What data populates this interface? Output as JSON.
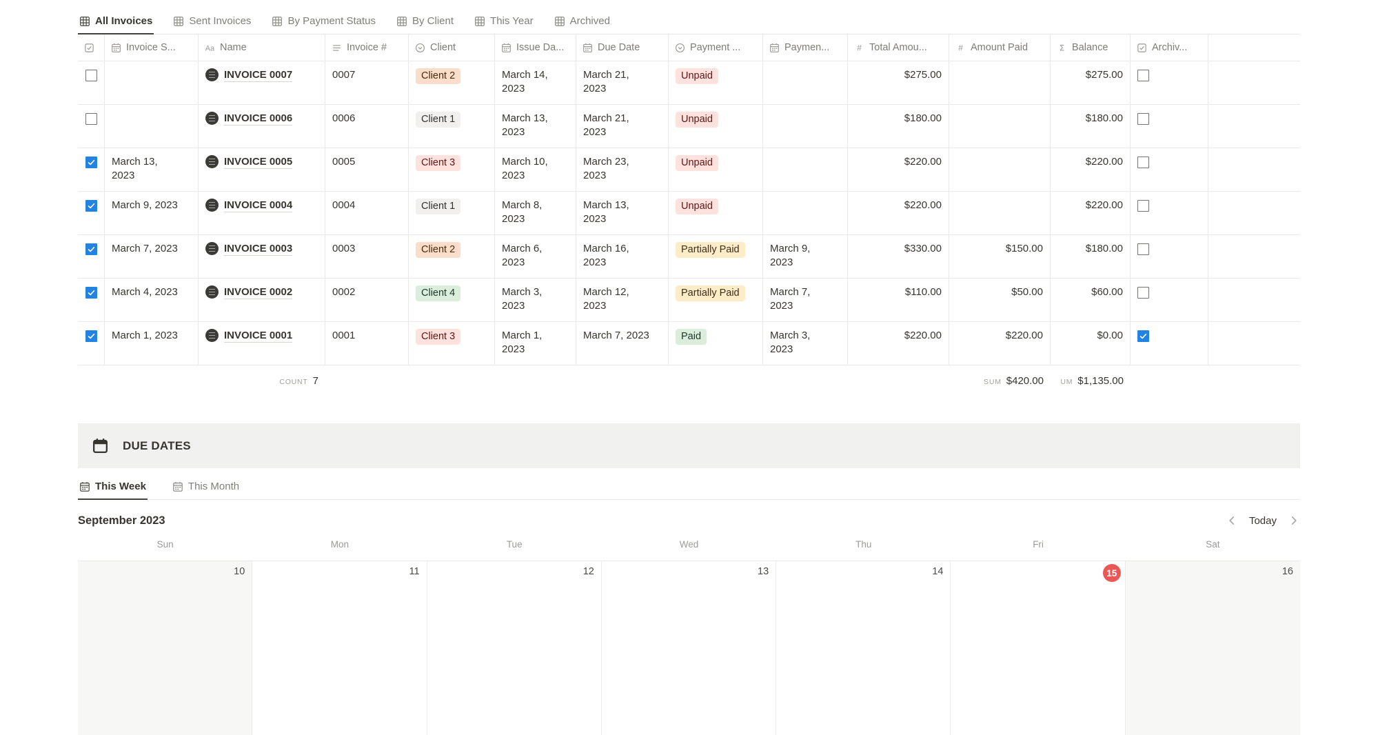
{
  "view_tabs": [
    {
      "label": "All Invoices",
      "icon": "table-icon",
      "active": true
    },
    {
      "label": "Sent Invoices",
      "icon": "table-icon",
      "active": false
    },
    {
      "label": "By Payment Status",
      "icon": "table-icon",
      "active": false
    },
    {
      "label": "By Client",
      "icon": "table-icon",
      "active": false
    },
    {
      "label": "This Year",
      "icon": "table-icon",
      "active": false
    },
    {
      "label": "Archived",
      "icon": "table-icon",
      "active": false
    }
  ],
  "table": {
    "columns": [
      {
        "key": "select",
        "label": "",
        "icon": "checkbox-icon",
        "type": "checkbox"
      },
      {
        "key": "invoice_sent",
        "label": "Invoice S...",
        "icon": "calendar-icon",
        "type": "text"
      },
      {
        "key": "name",
        "label": "Name",
        "icon": "aa-icon",
        "type": "name"
      },
      {
        "key": "invoice_num",
        "label": "Invoice #",
        "icon": "text-icon",
        "type": "text"
      },
      {
        "key": "client",
        "label": "Client",
        "icon": "select-icon",
        "type": "badge"
      },
      {
        "key": "issue_date",
        "label": "Issue Da...",
        "icon": "calendar-icon",
        "type": "text"
      },
      {
        "key": "due_date",
        "label": "Due Date",
        "icon": "calendar-icon",
        "type": "text"
      },
      {
        "key": "status",
        "label": "Payment ...",
        "icon": "select-icon",
        "type": "badge"
      },
      {
        "key": "payment_date",
        "label": "Paymen...",
        "icon": "calendar-icon",
        "type": "text"
      },
      {
        "key": "total",
        "label": "Total Amou...",
        "icon": "hash-icon",
        "type": "number"
      },
      {
        "key": "amount_paid",
        "label": "Amount Paid",
        "icon": "hash-icon",
        "type": "number"
      },
      {
        "key": "balance",
        "label": "Balance",
        "icon": "sigma-icon",
        "type": "number"
      },
      {
        "key": "archived",
        "label": "Archiv...",
        "icon": "checkbox-icon",
        "type": "archived"
      },
      {
        "key": "spacer",
        "label": "",
        "icon": null,
        "type": "empty"
      }
    ],
    "rows": [
      {
        "select": false,
        "invoice_sent": "",
        "name": "INVOICE 0007",
        "invoice_num": "0007",
        "client": {
          "label": "Client 2",
          "color": "orange"
        },
        "issue_date": "March 14,\n2023",
        "due_date": "March 21,\n2023",
        "status": {
          "label": "Unpaid",
          "color": "red"
        },
        "payment_date": "",
        "total": "$275.00",
        "amount_paid": "",
        "balance": "$275.00",
        "archived": false
      },
      {
        "select": false,
        "invoice_sent": "",
        "name": "INVOICE 0006",
        "invoice_num": "0006",
        "client": {
          "label": "Client 1",
          "color": "gray"
        },
        "issue_date": "March 13,\n2023",
        "due_date": "March 21,\n2023",
        "status": {
          "label": "Unpaid",
          "color": "red"
        },
        "payment_date": "",
        "total": "$180.00",
        "amount_paid": "",
        "balance": "$180.00",
        "archived": false
      },
      {
        "select": true,
        "invoice_sent": "March 13,\n2023",
        "name": "INVOICE 0005",
        "invoice_num": "0005",
        "client": {
          "label": "Client 3",
          "color": "red"
        },
        "issue_date": "March 10,\n2023",
        "due_date": "March 23,\n2023",
        "status": {
          "label": "Unpaid",
          "color": "red"
        },
        "payment_date": "",
        "total": "$220.00",
        "amount_paid": "",
        "balance": "$220.00",
        "archived": false
      },
      {
        "select": true,
        "invoice_sent": "March 9, 2023",
        "name": "INVOICE 0004",
        "invoice_num": "0004",
        "client": {
          "label": "Client 1",
          "color": "gray"
        },
        "issue_date": "March 8,\n2023",
        "due_date": "March 13,\n2023",
        "status": {
          "label": "Unpaid",
          "color": "red"
        },
        "payment_date": "",
        "total": "$220.00",
        "amount_paid": "",
        "balance": "$220.00",
        "archived": false
      },
      {
        "select": true,
        "invoice_sent": "March 7, 2023",
        "name": "INVOICE 0003",
        "invoice_num": "0003",
        "client": {
          "label": "Client 2",
          "color": "orange"
        },
        "issue_date": "March 6,\n2023",
        "due_date": "March 16,\n2023",
        "status": {
          "label": "Partially Paid",
          "color": "yellow"
        },
        "payment_date": "March 9,\n2023",
        "total": "$330.00",
        "amount_paid": "$150.00",
        "balance": "$180.00",
        "archived": false
      },
      {
        "select": true,
        "invoice_sent": "March 4, 2023",
        "name": "INVOICE 0002",
        "invoice_num": "0002",
        "client": {
          "label": "Client 4",
          "color": "green"
        },
        "issue_date": "March 3,\n2023",
        "due_date": "March 12,\n2023",
        "status": {
          "label": "Partially Paid",
          "color": "yellow"
        },
        "payment_date": "March 7,\n2023",
        "total": "$110.00",
        "amount_paid": "$50.00",
        "balance": "$60.00",
        "archived": false
      },
      {
        "select": true,
        "invoice_sent": "March 1, 2023",
        "name": "INVOICE 0001",
        "invoice_num": "0001",
        "client": {
          "label": "Client 3",
          "color": "red"
        },
        "issue_date": "March 1,\n2023",
        "due_date": "March 7, 2023",
        "status": {
          "label": "Paid",
          "color": "green"
        },
        "payment_date": "March 3,\n2023",
        "total": "$220.00",
        "amount_paid": "$220.00",
        "balance": "$0.00",
        "archived": true
      }
    ],
    "footer": {
      "count_label": "COUNT",
      "count_value": "7",
      "sum_paid_label": "SUM",
      "sum_paid_value": "$420.00",
      "sum_balance_label": "UM",
      "sum_balance_value": "$1,135.00"
    }
  },
  "due_dates": {
    "title": "DUE DATES",
    "title_icon": "calendar-icon",
    "tabs": [
      {
        "label": "This Week",
        "icon": "calendar-icon",
        "active": true
      },
      {
        "label": "This Month",
        "icon": "calendar-icon",
        "active": false
      }
    ],
    "calendar": {
      "month_label": "September 2023",
      "today_label": "Today",
      "day_names": [
        "Sun",
        "Mon",
        "Tue",
        "Wed",
        "Thu",
        "Fri",
        "Sat"
      ],
      "dates": [
        {
          "day": "10",
          "weekend": true,
          "today": false
        },
        {
          "day": "11",
          "weekend": false,
          "today": false
        },
        {
          "day": "12",
          "weekend": false,
          "today": false
        },
        {
          "day": "13",
          "weekend": false,
          "today": false
        },
        {
          "day": "14",
          "weekend": false,
          "today": false
        },
        {
          "day": "15",
          "weekend": false,
          "today": true
        },
        {
          "day": "16",
          "weekend": true,
          "today": false
        }
      ]
    }
  },
  "colors": {
    "checkbox_blue": "#2383E2",
    "today_red": "#EB5757",
    "tag_colors": {
      "gray": {
        "bg": "#F1F0EE",
        "text": "#32302C"
      },
      "orange": {
        "bg": "#FADEC9",
        "text": "#49290E"
      },
      "red": {
        "bg": "#FFE2DD",
        "text": "#5D1715"
      },
      "green": {
        "bg": "#DBEDDB",
        "text": "#1C3829"
      },
      "yellow": {
        "bg": "#FDECC8",
        "text": "#402C1B"
      }
    }
  }
}
